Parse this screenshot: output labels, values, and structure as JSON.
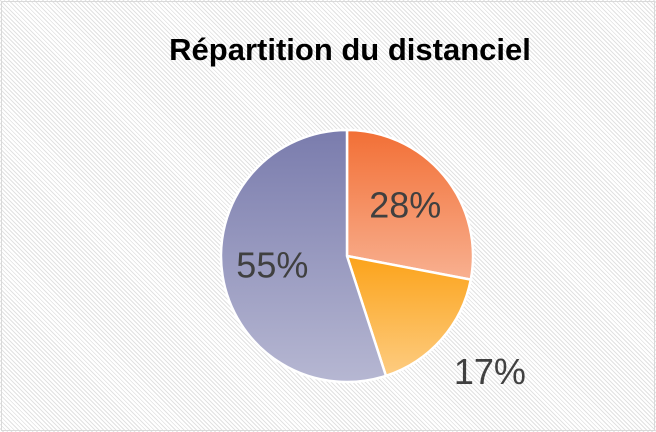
{
  "chart_data": {
    "type": "pie",
    "title": "Répartition du distanciel",
    "values": [
      28,
      17,
      55
    ],
    "value_labels": [
      "28%",
      "17%",
      "55%"
    ],
    "colors": [
      "#f26f35",
      "#fca31a",
      "#7a7cad"
    ]
  }
}
